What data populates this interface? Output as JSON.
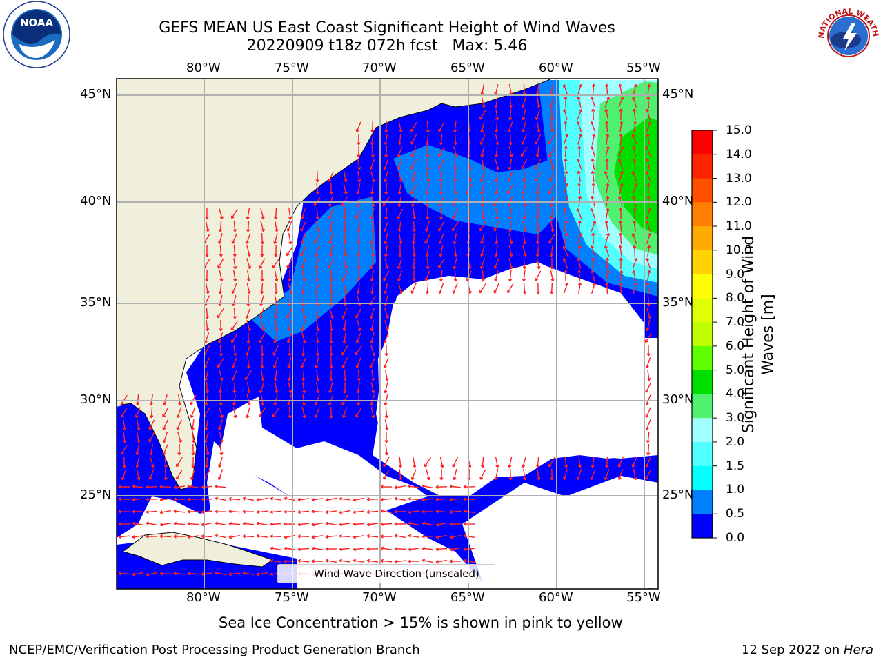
{
  "header": {
    "title_line1": "GEFS MEAN US East Coast Significant Height of Wind Waves",
    "title_line2": "20220909 t18z 072h fcst   Max: 5.46"
  },
  "logos": {
    "left": "NOAA",
    "right_arc": "NATIONAL WEATHER SERVICE"
  },
  "map": {
    "lon_labels": [
      "80°W",
      "75°W",
      "70°W",
      "65°W",
      "60°W",
      "55°W"
    ],
    "lat_labels": [
      "45°N",
      "40°N",
      "35°N",
      "30°N",
      "25°N"
    ],
    "legend_label": "Wind Wave Direction (unscaled)"
  },
  "colorbar": {
    "label_line1": "Significant Height of Wind",
    "label_line2": "Waves [m]",
    "ticks": [
      "15.0",
      "14.0",
      "13.0",
      "12.0",
      "11.0",
      "10.0",
      "9.0",
      "8.0",
      "7.0",
      "6.0",
      "5.0",
      "4.0",
      "3.0",
      "2.0",
      "1.5",
      "1.0",
      "0.5",
      "0.0"
    ],
    "colors": [
      "#ff0000",
      "#ff2400",
      "#ff5000",
      "#ff8000",
      "#ffaa00",
      "#ffd200",
      "#ffff00",
      "#e0ff00",
      "#c0ff00",
      "#60ff00",
      "#00e000",
      "#50f070",
      "#a0ffff",
      "#50ffff",
      "#00ffff",
      "#0080ff",
      "#0000ff"
    ]
  },
  "footer": {
    "note": "Sea Ice Concentration > 15% is shown in pink to yellow",
    "credit": "NCEP/EMC/Verification Post Processing Product Generation Branch",
    "date": "12 Sep 2022 on ",
    "host": "Hera"
  }
}
